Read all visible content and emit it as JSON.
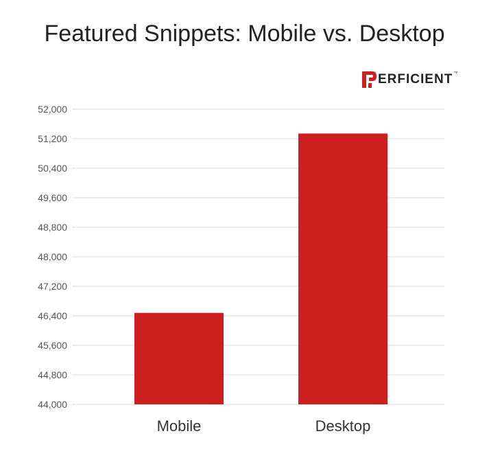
{
  "chart_data": {
    "type": "bar",
    "title": "Featured Snippets: Mobile vs. Desktop",
    "categories": [
      "Mobile",
      "Desktop"
    ],
    "values": [
      46480,
      51340
    ],
    "ylim": [
      44000,
      52000
    ],
    "yticks": [
      44000,
      44800,
      45600,
      46400,
      47200,
      48000,
      48800,
      49600,
      50400,
      51200,
      52000
    ],
    "ytick_labels": [
      "44,000",
      "44,800",
      "45,600",
      "46,400",
      "47,200",
      "48,000",
      "48,800",
      "49,600",
      "50,400",
      "51,200",
      "52,000"
    ],
    "xlabel": "",
    "ylabel": "",
    "grid": true,
    "bar_color": "#CC1F20",
    "grid_color": "#D9D9D9"
  },
  "branding": {
    "logo_text": "ERFICIENT",
    "logo_tm": "™",
    "logo_color": "#CC1F20",
    "logo_icon": "perficient-p-logo-icon"
  }
}
